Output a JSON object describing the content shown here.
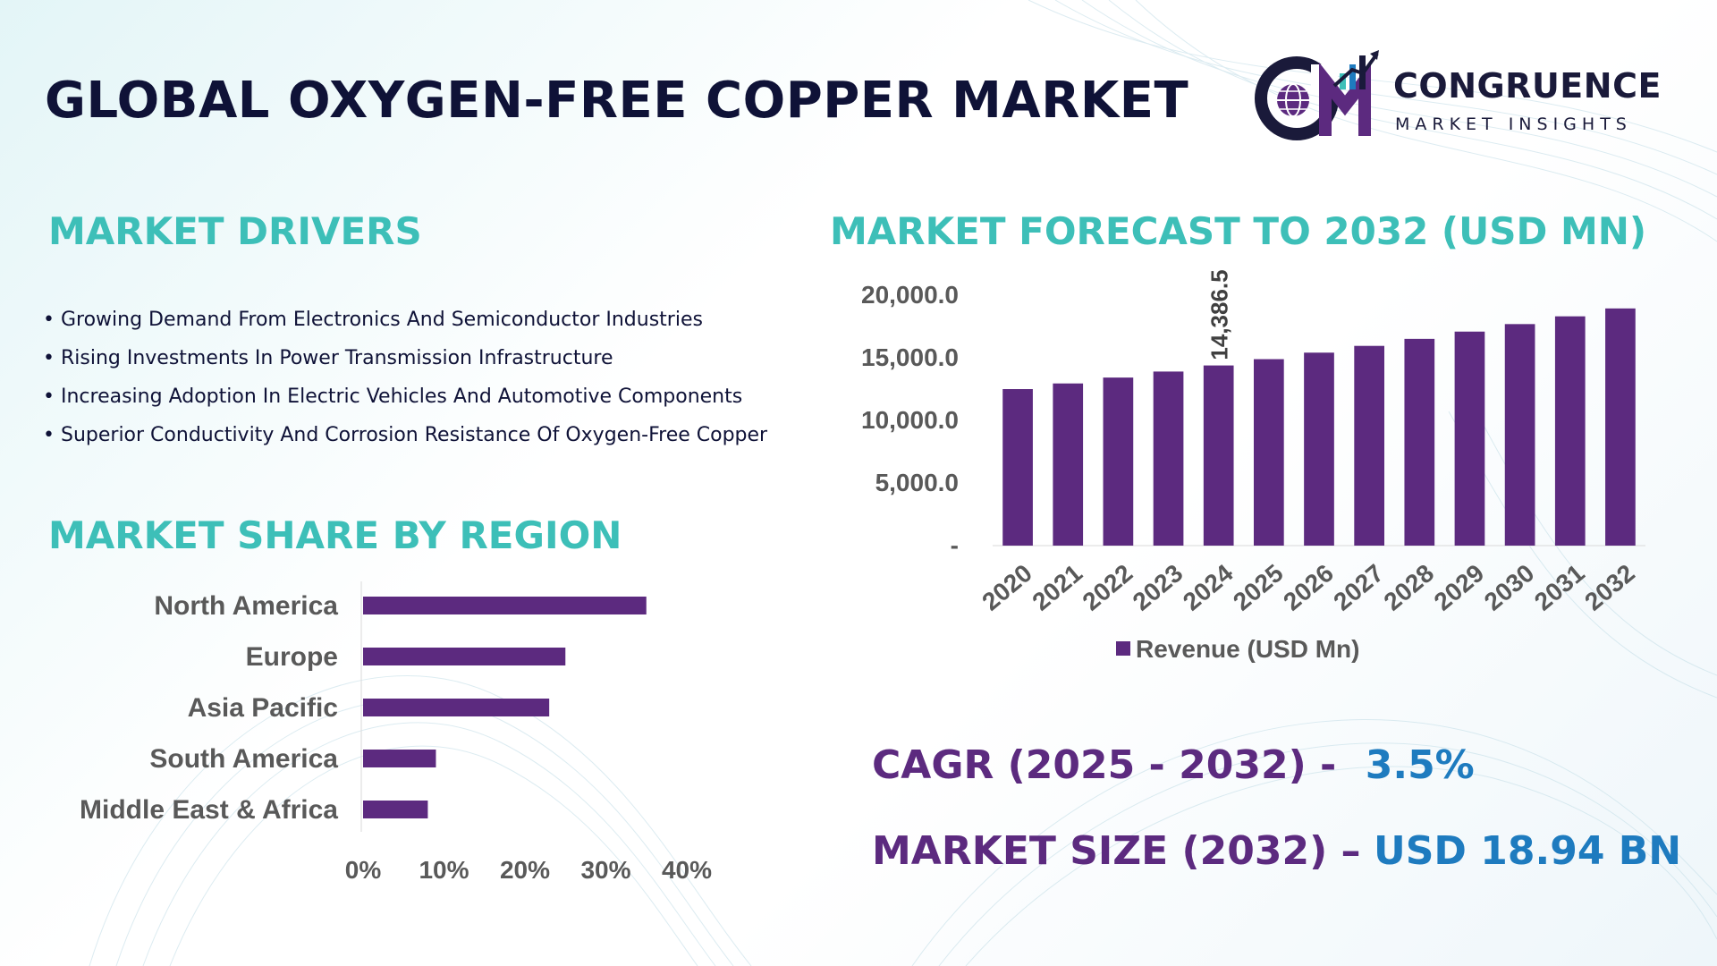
{
  "header": {
    "title": "GLOBAL OXYGEN-FREE COPPER MARKET",
    "logo": {
      "icon": "cm-globe-chart-logo",
      "name": "CONGRUENCE",
      "tagline": "MARKET INSIGHTS"
    }
  },
  "drivers": {
    "title": "MARKET DRIVERS",
    "items": [
      "Growing Demand From Electronics And Semiconductor Industries",
      "Rising Investments In Power Transmission Infrastructure",
      "Increasing Adoption In Electric Vehicles And Automotive Components",
      "Superior Conductivity And Corrosion Resistance Of Oxygen-Free Copper"
    ]
  },
  "forecast": {
    "title": "MARKET FORECAST TO 2032 (USD MN)"
  },
  "region": {
    "title": "MARKET SHARE BY REGION"
  },
  "kpis": {
    "cagr_label": "CAGR (2025 - 2032) -",
    "cagr_value": "3.5%",
    "size_label": "MARKET SIZE (2032) –",
    "size_value": "USD 18.94 BN"
  },
  "colors": {
    "bar": "#5c2a7f",
    "teal_heading": "#3dbfb8",
    "navy": "#0f1237",
    "kpi_value": "#1e7bbf"
  },
  "chart_data": [
    {
      "type": "bar",
      "categories": [
        "2020",
        "2021",
        "2022",
        "2023",
        "2024",
        "2025",
        "2026",
        "2027",
        "2028",
        "2029",
        "2030",
        "2031",
        "2032"
      ],
      "series": [
        {
          "name": "Revenue (USD Mn)",
          "values": [
            12500,
            12950,
            13420,
            13900,
            14386.5,
            14890,
            15410,
            15950,
            16510,
            17090,
            17690,
            18310,
            18940
          ]
        }
      ],
      "data_labels": [
        {
          "category": "2024",
          "text": "14,386.5"
        }
      ],
      "y_ticks": [
        "-",
        "5,000.0",
        "10,000.0",
        "15,000.0",
        "20,000.0"
      ],
      "ylim": [
        0,
        20000
      ],
      "legend": "bottom",
      "grid": false
    },
    {
      "type": "bar",
      "orientation": "horizontal",
      "categories": [
        "North America",
        "Europe",
        "Asia Pacific",
        "South America",
        "Middle East & Africa"
      ],
      "values": [
        35,
        25,
        23,
        9,
        8
      ],
      "x_ticks": [
        "0%",
        "10%",
        "20%",
        "30%",
        "40%"
      ],
      "xlim": [
        0,
        40
      ],
      "grid": false
    }
  ]
}
